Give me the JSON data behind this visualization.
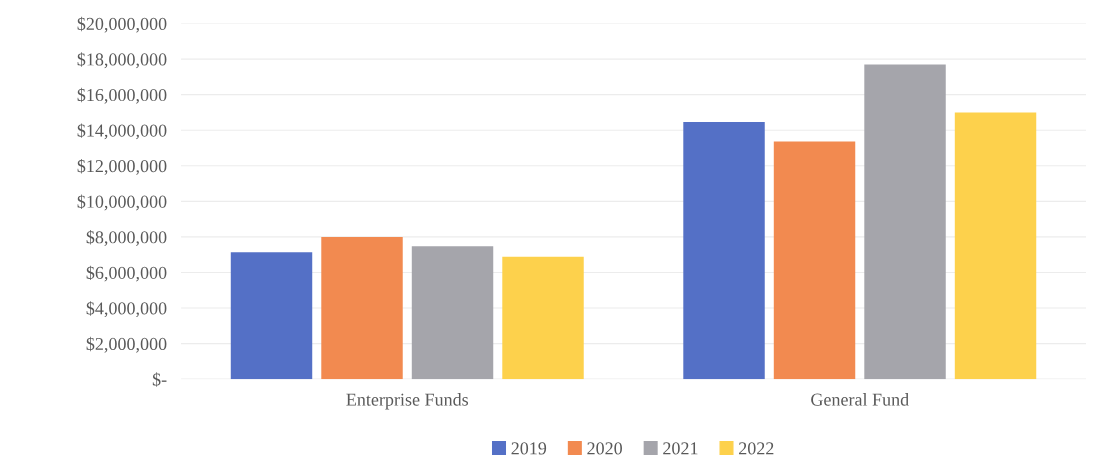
{
  "chart_data": {
    "type": "bar",
    "categories": [
      "Enterprise Funds",
      "General Fund"
    ],
    "series": [
      {
        "name": "2019",
        "color": "#5470c6",
        "values": [
          7140000,
          14460000
        ]
      },
      {
        "name": "2020",
        "color": "#f28a50",
        "values": [
          8000000,
          13370000
        ]
      },
      {
        "name": "2021",
        "color": "#a5a5ab",
        "values": [
          7480000,
          17700000
        ]
      },
      {
        "name": "2022",
        "color": "#fdd14c",
        "values": [
          6880000,
          15000000
        ]
      }
    ],
    "ylim": [
      0,
      20000000
    ],
    "yticks": [
      {
        "value": 0,
        "label": "$-"
      },
      {
        "value": 2000000,
        "label": "$2,000,000"
      },
      {
        "value": 4000000,
        "label": "$4,000,000"
      },
      {
        "value": 6000000,
        "label": "$6,000,000"
      },
      {
        "value": 8000000,
        "label": "$8,000,000"
      },
      {
        "value": 10000000,
        "label": "$10,000,000"
      },
      {
        "value": 12000000,
        "label": "$12,000,000"
      },
      {
        "value": 14000000,
        "label": "$14,000,000"
      },
      {
        "value": 16000000,
        "label": "$16,000,000"
      },
      {
        "value": 18000000,
        "label": "$18,000,000"
      },
      {
        "value": 20000000,
        "label": "$20,000,000"
      }
    ],
    "grid": "y",
    "legend": "bottom"
  }
}
